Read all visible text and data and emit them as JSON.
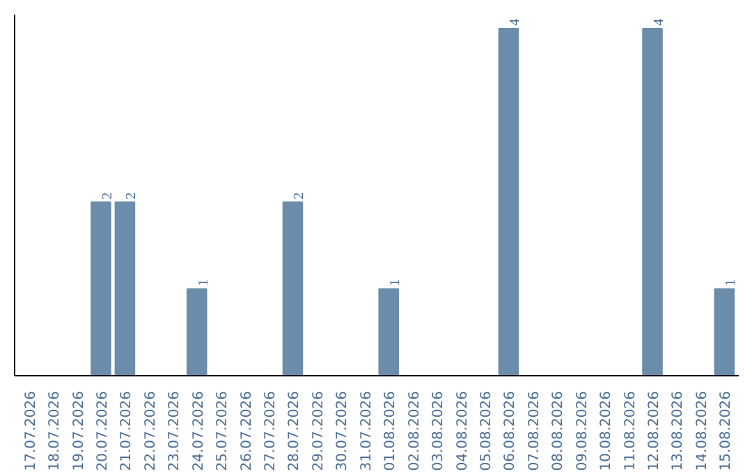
{
  "chart_data": {
    "type": "bar",
    "categories": [
      "17.07.2026",
      "18.07.2026",
      "19.07.2026",
      "20.07.2026",
      "21.07.2026",
      "22.07.2026",
      "23.07.2026",
      "24.07.2026",
      "25.07.2026",
      "26.07.2026",
      "27.07.2026",
      "28.07.2026",
      "29.07.2026",
      "30.07.2026",
      "31.07.2026",
      "01.08.2026",
      "02.08.2026",
      "03.08.2026",
      "04.08.2026",
      "05.08.2026",
      "06.08.2026",
      "07.08.2026",
      "08.08.2026",
      "09.08.2026",
      "10.08.2026",
      "11.08.2026",
      "12.08.2026",
      "13.08.2026",
      "14.08.2026",
      "15.08.2026"
    ],
    "values": [
      0,
      0,
      0,
      2,
      2,
      0,
      0,
      1,
      0,
      0,
      0,
      2,
      0,
      0,
      0,
      1,
      0,
      0,
      0,
      0,
      4,
      0,
      0,
      0,
      0,
      0,
      4,
      0,
      0,
      1
    ],
    "value_labels": [
      null,
      null,
      null,
      "2",
      "2",
      null,
      null,
      "1",
      null,
      null,
      null,
      "2",
      null,
      null,
      null,
      "1",
      null,
      null,
      null,
      null,
      "4",
      null,
      null,
      null,
      null,
      null,
      "4",
      null,
      null,
      "1"
    ],
    "color": "#6b8cab",
    "grid": false
  }
}
